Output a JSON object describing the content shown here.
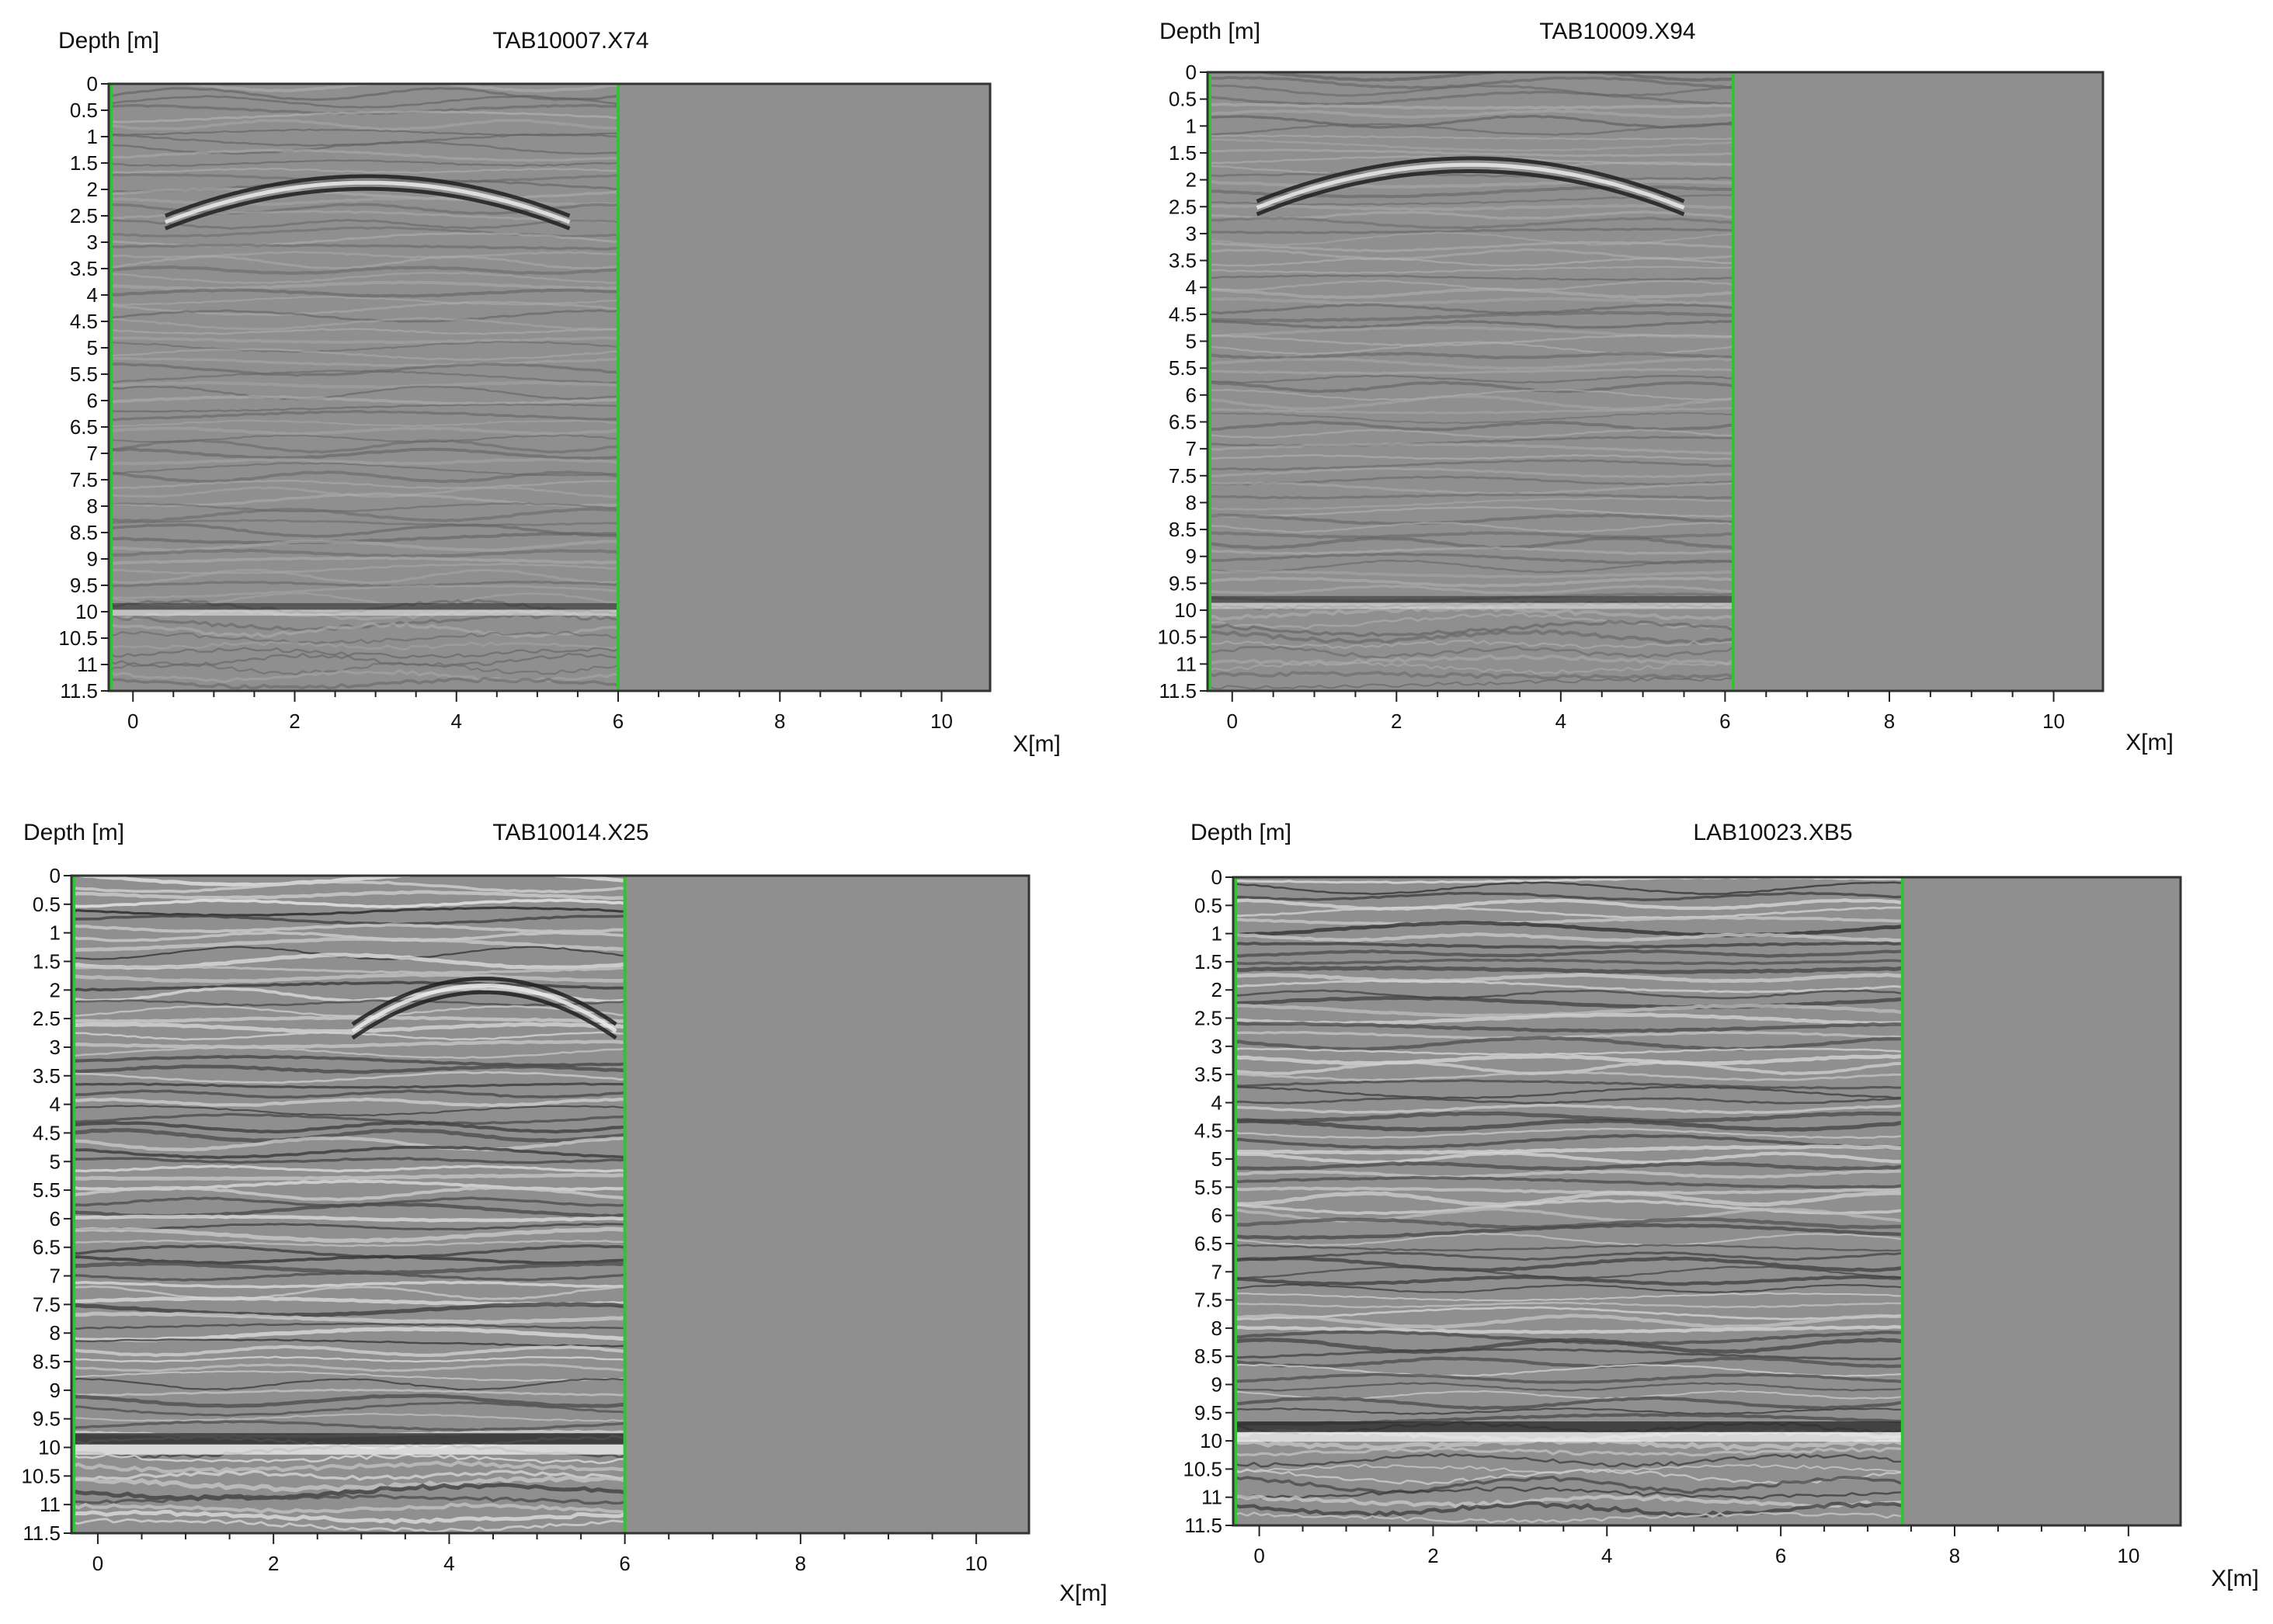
{
  "chart_data": [
    {
      "type": "heatmap",
      "title": "TAB10007.X74",
      "ylabel": "Depth [m]",
      "xlabel": "X[m]",
      "xlim": [
        -0.3,
        10.6
      ],
      "ylim": [
        0,
        11.5
      ],
      "y_inverted": true,
      "xticks": [
        "0",
        "2",
        "4",
        "6",
        "8",
        "10"
      ],
      "yticks": [
        "0",
        "0.5",
        "1",
        "1.5",
        "2",
        "2.5",
        "3",
        "3.5",
        "4",
        "4.5",
        "5",
        "5.5",
        "6",
        "6.5",
        "7",
        "7.5",
        "8",
        "8.5",
        "9",
        "9.5",
        "10",
        "10.5",
        "11",
        "11.5"
      ],
      "data_extent_x": [
        -0.3,
        6.0
      ],
      "marker_lines_x": [
        -0.3,
        6.0
      ],
      "reflector_depth": 9.9,
      "signal_contrast": 0.32,
      "hyperbola": {
        "x0": 2.9,
        "apex_depth": 1.75,
        "half_width": 2.5,
        "drop": 0.75
      },
      "colors": {
        "background": "#8f8f8f",
        "marker_line": "#33c233",
        "frame": "#333333"
      }
    },
    {
      "type": "heatmap",
      "title": "TAB10009.X94",
      "ylabel": "Depth [m]",
      "xlabel": "X[m]",
      "xlim": [
        -0.3,
        10.6
      ],
      "ylim": [
        0,
        11.5
      ],
      "y_inverted": true,
      "xticks": [
        "0",
        "2",
        "4",
        "6",
        "8",
        "10"
      ],
      "yticks": [
        "0",
        "0.5",
        "1",
        "1.5",
        "2",
        "2.5",
        "3",
        "3.5",
        "4",
        "4.5",
        "5",
        "5.5",
        "6",
        "6.5",
        "7",
        "7.5",
        "8",
        "8.5",
        "9",
        "9.5",
        "10",
        "10.5",
        "11",
        "11.5"
      ],
      "data_extent_x": [
        -0.3,
        6.1
      ],
      "marker_lines_x": [
        -0.3,
        6.1
      ],
      "reflector_depth": 9.8,
      "signal_contrast": 0.34,
      "hyperbola": {
        "x0": 2.9,
        "apex_depth": 1.6,
        "half_width": 2.6,
        "drop": 0.8
      },
      "colors": {
        "background": "#8f8f8f",
        "marker_line": "#33c233",
        "frame": "#333333"
      }
    },
    {
      "type": "heatmap",
      "title": "TAB10014.X25",
      "ylabel": "Depth [m]",
      "xlabel": "X[m]",
      "xlim": [
        -0.3,
        10.6
      ],
      "ylim": [
        0,
        11.5
      ],
      "y_inverted": true,
      "xticks": [
        "0",
        "2",
        "4",
        "6",
        "8",
        "10"
      ],
      "yticks": [
        "0",
        "0.5",
        "1",
        "1.5",
        "2",
        "2.5",
        "3",
        "3.5",
        "4",
        "4.5",
        "5",
        "5.5",
        "6",
        "6.5",
        "7",
        "7.5",
        "8",
        "8.5",
        "9",
        "9.5",
        "10",
        "10.5",
        "11",
        "11.5"
      ],
      "data_extent_x": [
        -0.3,
        6.0
      ],
      "marker_lines_x": [
        -0.3,
        6.0
      ],
      "reflector_depth": 9.85,
      "signal_contrast": 0.75,
      "hyperbola": {
        "x0": 4.4,
        "apex_depth": 1.8,
        "half_width": 1.5,
        "drop": 0.8
      },
      "colors": {
        "background": "#8f8f8f",
        "marker_line": "#33c233",
        "frame": "#333333"
      }
    },
    {
      "type": "heatmap",
      "title": "LAB10023.XB5",
      "ylabel": "Depth [m]",
      "xlabel": "X[m]",
      "xlim": [
        -0.3,
        10.6
      ],
      "ylim": [
        0,
        11.5
      ],
      "y_inverted": true,
      "xticks": [
        "0",
        "2",
        "4",
        "6",
        "8",
        "10"
      ],
      "yticks": [
        "0",
        "0.5",
        "1",
        "1.5",
        "2",
        "2.5",
        "3",
        "3.5",
        "4",
        "4.5",
        "5",
        "5.5",
        "6",
        "6.5",
        "7",
        "7.5",
        "8",
        "8.5",
        "9",
        "9.5",
        "10",
        "10.5",
        "11",
        "11.5"
      ],
      "data_extent_x": [
        -0.3,
        7.4
      ],
      "marker_lines_x": [
        -0.3,
        7.4
      ],
      "reflector_depth": 9.75,
      "signal_contrast": 0.7,
      "hyperbola": null,
      "colors": {
        "background": "#8f8f8f",
        "marker_line": "#33c233",
        "frame": "#333333"
      }
    }
  ]
}
